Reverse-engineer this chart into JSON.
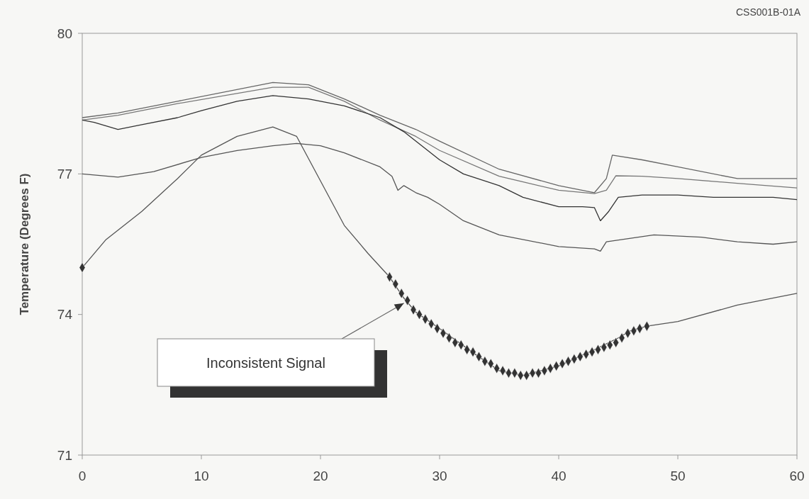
{
  "chart_data": {
    "type": "line",
    "ylabel": "Temperature (Degrees F)",
    "xlim": [
      0,
      60
    ],
    "xticks": [
      0,
      10,
      20,
      30,
      40,
      50,
      60
    ],
    "ylim": [
      71,
      80
    ],
    "yticks": [
      71,
      74,
      77,
      80
    ],
    "grid": false,
    "line_style": "solid",
    "annotations": [
      "CSS001B-01A",
      "Inconsistent Signal"
    ],
    "series": [
      {
        "color": "#666666",
        "x": [
          0,
          3,
          8,
          16,
          19,
          22,
          25,
          28,
          30,
          35,
          40,
          43,
          44,
          44.5,
          47,
          50,
          55,
          60
        ],
        "values": [
          78.2,
          78.3,
          78.55,
          78.95,
          78.9,
          78.6,
          78.25,
          77.95,
          77.7,
          77.1,
          76.75,
          76.6,
          76.9,
          77.4,
          77.3,
          77.15,
          76.9,
          76.9
        ]
      },
      {
        "color": "#777777",
        "x": [
          0,
          3,
          8,
          16,
          19,
          22,
          25,
          28,
          30,
          35,
          40,
          43,
          44,
          44.8,
          47,
          50,
          55,
          60
        ],
        "values": [
          78.15,
          78.25,
          78.5,
          78.85,
          78.85,
          78.55,
          78.15,
          77.8,
          77.5,
          76.95,
          76.65,
          76.58,
          76.65,
          76.96,
          76.95,
          76.9,
          76.8,
          76.7
        ]
      },
      {
        "color": "#333333",
        "x": [
          0,
          1,
          3,
          5,
          8,
          10,
          13,
          16,
          19,
          22,
          25,
          27,
          28,
          30,
          32,
          35,
          37,
          40,
          42,
          43,
          43.5,
          44.2,
          45,
          47,
          50,
          53,
          55,
          58,
          60
        ],
        "values": [
          78.15,
          78.1,
          77.95,
          78.05,
          78.2,
          78.35,
          78.55,
          78.67,
          78.6,
          78.45,
          78.2,
          77.9,
          77.7,
          77.3,
          77.0,
          76.75,
          76.5,
          76.3,
          76.3,
          76.28,
          76.0,
          76.2,
          76.5,
          76.55,
          76.55,
          76.5,
          76.5,
          76.5,
          76.45
        ]
      },
      {
        "color": "#555555",
        "x": [
          0,
          3,
          6,
          10,
          13,
          16,
          18,
          20,
          22,
          25,
          26,
          26.5,
          27,
          28,
          29,
          30,
          32,
          35,
          40,
          43,
          43.5,
          44,
          48,
          52,
          55,
          58,
          60
        ],
        "values": [
          77.0,
          76.93,
          77.05,
          77.35,
          77.5,
          77.6,
          77.65,
          77.6,
          77.45,
          77.15,
          76.95,
          76.65,
          76.75,
          76.6,
          76.5,
          76.35,
          76.0,
          75.7,
          75.45,
          75.4,
          75.35,
          75.55,
          75.7,
          75.65,
          75.55,
          75.5,
          75.55
        ]
      },
      {
        "color": "#555555",
        "marker": "none",
        "x": [
          0,
          2,
          5,
          8,
          10,
          13,
          16,
          18,
          20,
          22,
          24,
          25.8,
          27,
          28,
          30,
          33,
          35,
          37,
          40,
          43,
          45,
          46,
          47.4,
          50,
          55,
          60
        ],
        "values": [
          75.0,
          75.6,
          76.2,
          76.9,
          77.4,
          77.8,
          78.0,
          77.8,
          76.85,
          75.9,
          75.3,
          74.8,
          74.35,
          74.05,
          73.7,
          73.15,
          72.8,
          72.7,
          72.9,
          73.25,
          73.5,
          73.65,
          73.75,
          73.85,
          74.2,
          74.45
        ]
      },
      {
        "type": "scatter",
        "color": "#333333",
        "marker": "diamond",
        "x": [
          0,
          25.8,
          26.3,
          26.8,
          27.3,
          27.8,
          28.3,
          28.8,
          29.3,
          29.8,
          30.3,
          30.8,
          31.3,
          31.8,
          32.3,
          32.8,
          33.3,
          33.8,
          34.3,
          34.8,
          35.3,
          35.8,
          36.3,
          36.8,
          37.3,
          37.8,
          38.3,
          38.8,
          39.3,
          39.8,
          40.3,
          40.8,
          41.3,
          41.8,
          42.3,
          42.8,
          43.3,
          43.8,
          44.3,
          44.8,
          45.3,
          45.8,
          46.3,
          46.8,
          47.4
        ],
        "values": [
          75.0,
          74.8,
          74.65,
          74.45,
          74.3,
          74.1,
          74.0,
          73.9,
          73.8,
          73.7,
          73.6,
          73.5,
          73.4,
          73.35,
          73.25,
          73.2,
          73.1,
          73.0,
          72.95,
          72.85,
          72.8,
          72.75,
          72.75,
          72.7,
          72.7,
          72.75,
          72.75,
          72.8,
          72.85,
          72.9,
          72.95,
          73.0,
          73.05,
          73.1,
          73.15,
          73.2,
          73.25,
          73.3,
          73.35,
          73.4,
          73.5,
          73.6,
          73.65,
          73.7,
          73.75
        ]
      }
    ]
  }
}
